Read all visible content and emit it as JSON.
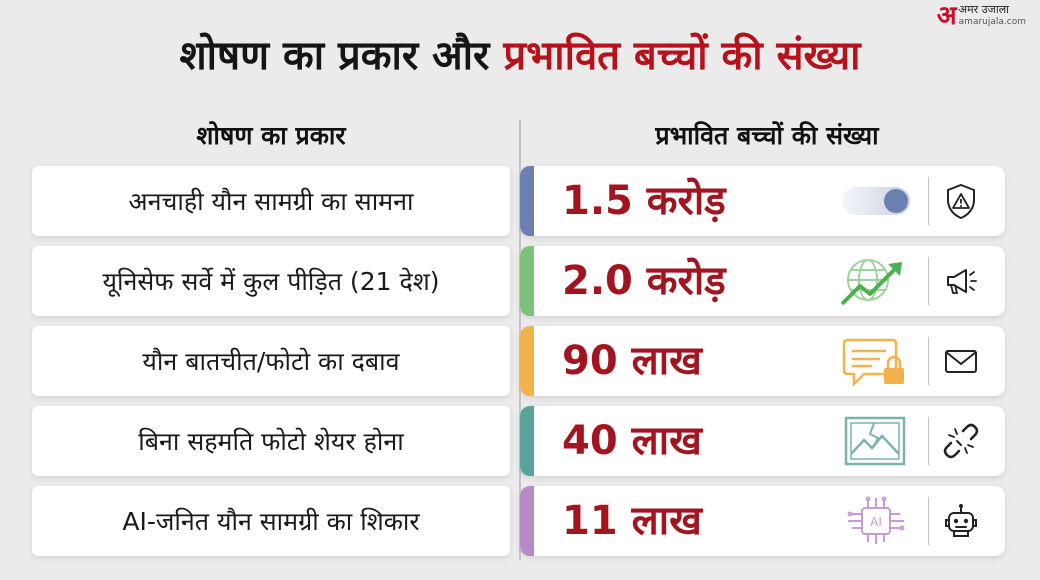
{
  "brand": {
    "mark": "अ",
    "name": "अमर उजाला",
    "site": "amarujala.com"
  },
  "title": {
    "part1": "शोषण का प्रकार और",
    "part2": "प्रभावित बच्चों की संख्या"
  },
  "columns": {
    "left": "शोषण का प्रकार",
    "right": "प्रभावित बच्चों की संख्या"
  },
  "colors": {
    "accent": "#b5121b",
    "value": "#a21520"
  },
  "rows": [
    {
      "type": "अनचाही यौन सामग्री का सामना",
      "count": "1.5 करोड़",
      "stripe": "#6b7fb3",
      "graphic": "toggle-switch",
      "icon": "shield-warning-icon"
    },
    {
      "type": "यूनिसेफ सर्वे में कुल पीड़ित (21 देश)",
      "count": "2.0 करोड़",
      "stripe": "#7cc27b",
      "graphic": "globe-growth-arrow",
      "icon": "megaphone-icon"
    },
    {
      "type": "यौन बातचीत/फोटो का दबाव",
      "count": "90 लाख",
      "stripe": "#f2b24c",
      "graphic": "chat-lock",
      "icon": "envelope-icon"
    },
    {
      "type": "बिना सहमति फोटो शेयर होना",
      "count": "40 लाख",
      "stripe": "#5aa39b",
      "graphic": "broken-image",
      "icon": "broken-link-icon"
    },
    {
      "type": "AI-जनित यौन सामग्री का शिकार",
      "count": "11 लाख",
      "stripe": "#b58ac6",
      "graphic": "ai-chip",
      "icon": "robot-icon"
    }
  ]
}
